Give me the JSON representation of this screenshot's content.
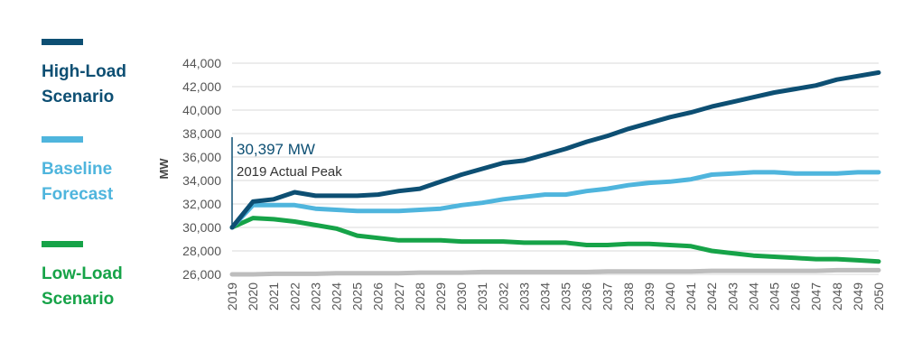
{
  "legend": [
    {
      "label": "High-Load\nScenario",
      "color": "#0d4f73"
    },
    {
      "label": "Baseline\nForecast",
      "color": "#4fb5dd"
    },
    {
      "label": "Low-Load\nScenario",
      "color": "#16a348"
    }
  ],
  "chart_data": {
    "type": "line",
    "ylabel": "MW",
    "ylim": [
      26000,
      44000
    ],
    "yticks": [
      "44,000",
      "42,000",
      "40,000",
      "38,000",
      "36,000",
      "34,000",
      "32,000",
      "30,000",
      "28,000",
      "26,000"
    ],
    "ytick_values": [
      44000,
      42000,
      40000,
      38000,
      36000,
      34000,
      32000,
      30000,
      28000,
      26000
    ],
    "x": [
      "2019",
      "2020",
      "2021",
      "2022",
      "2023",
      "2024",
      "2025",
      "2026",
      "2027",
      "2028",
      "2029",
      "2030",
      "2031",
      "2032",
      "2033",
      "2034",
      "2035",
      "2036",
      "2037",
      "2038",
      "2039",
      "2040",
      "2041",
      "2042",
      "2043",
      "2044",
      "2045",
      "2046",
      "2047",
      "2048",
      "2049",
      "2050"
    ],
    "grid": true,
    "series": [
      {
        "name": "High-Load Scenario",
        "color": "#0d4f73",
        "values": [
          30000,
          32200,
          32400,
          33000,
          32700,
          32700,
          32700,
          32800,
          33100,
          33300,
          33900,
          34500,
          35000,
          35500,
          35700,
          36200,
          36700,
          37300,
          37800,
          38400,
          38900,
          39400,
          39800,
          40300,
          40700,
          41100,
          41500,
          41800,
          42100,
          42600,
          42900,
          43200
        ]
      },
      {
        "name": "Baseline Forecast",
        "color": "#4fb5dd",
        "values": [
          30000,
          31900,
          31900,
          31900,
          31600,
          31500,
          31400,
          31400,
          31400,
          31500,
          31600,
          31900,
          32100,
          32400,
          32600,
          32800,
          32800,
          33100,
          33300,
          33600,
          33800,
          33900,
          34100,
          34500,
          34600,
          34700,
          34700,
          34600,
          34600,
          34600,
          34700,
          34700
        ]
      },
      {
        "name": "Low-Load Scenario",
        "color": "#16a348",
        "values": [
          30000,
          30800,
          30700,
          30500,
          30200,
          29900,
          29300,
          29100,
          28900,
          28900,
          28900,
          28800,
          28800,
          28800,
          28700,
          28700,
          28700,
          28500,
          28500,
          28600,
          28600,
          28500,
          28400,
          28000,
          27800,
          27600,
          27500,
          27400,
          27300,
          27300,
          27200,
          27100
        ]
      },
      {
        "name": "",
        "color": "#bdbdbd",
        "values": [
          26000,
          26000,
          26050,
          26050,
          26050,
          26100,
          26100,
          26100,
          26100,
          26150,
          26150,
          26150,
          26200,
          26200,
          26200,
          26200,
          26200,
          26200,
          26250,
          26250,
          26250,
          26250,
          26250,
          26300,
          26300,
          26300,
          26300,
          26300,
          26300,
          26350,
          26350,
          26350
        ]
      }
    ],
    "annotation": {
      "value": "30,397 MW",
      "text": "2019 Actual Peak",
      "color": "#0d4f73"
    }
  }
}
